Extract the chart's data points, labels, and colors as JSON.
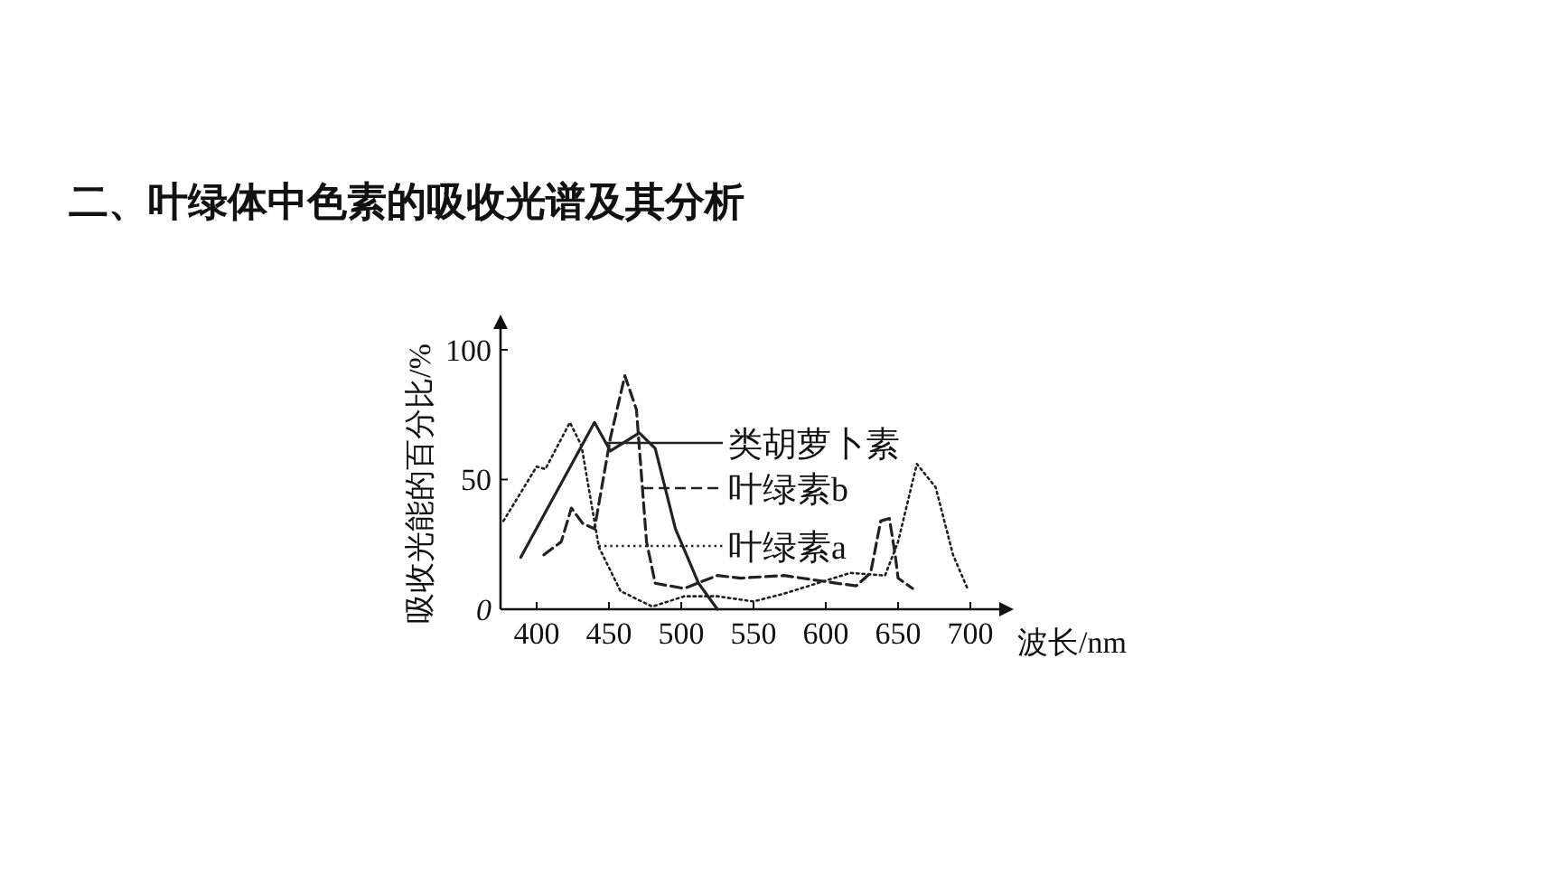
{
  "chart_data": {
    "type": "line",
    "title": "二、叶绿体中色素的吸收光谱及其分析",
    "xlabel": "波长/nm",
    "ylabel": "吸收光能的百分比/%",
    "xlim": [
      375,
      720
    ],
    "ylim": [
      0,
      108
    ],
    "xticks": [
      400,
      450,
      500,
      550,
      600,
      650,
      700
    ],
    "yticks": [
      0,
      50,
      100
    ],
    "grid": false,
    "legend": "right",
    "marker": "none",
    "series": [
      {
        "name": "类胡萝卜素",
        "color": "#222222",
        "line_style": "solid",
        "x": [
          389,
          440,
          451,
          471,
          482,
          496,
          512,
          525
        ],
        "values": [
          20,
          72,
          61,
          68,
          62,
          31,
          10,
          0
        ]
      },
      {
        "name": "叶绿素b",
        "color": "#222222",
        "line_style": "dashed",
        "x": [
          405,
          417,
          424,
          432,
          440,
          451,
          461,
          469,
          476,
          482,
          502,
          525,
          541,
          571,
          608,
          621,
          631,
          638,
          644,
          648,
          650,
          660
        ],
        "values": [
          21,
          26,
          39,
          33,
          31,
          66,
          90,
          77,
          26,
          10,
          8,
          13,
          12,
          13,
          10,
          9,
          14,
          34,
          35,
          21,
          12,
          8
        ]
      },
      {
        "name": "叶绿素a",
        "color": "#222222",
        "line_style": "dotted",
        "x": [
          377,
          400,
          406,
          423,
          431,
          443,
          458,
          480,
          502,
          525,
          550,
          571,
          617,
          641,
          650,
          663,
          676,
          688,
          698
        ],
        "values": [
          34,
          55,
          54,
          72,
          63,
          24,
          7,
          1,
          5,
          5,
          3,
          6,
          14,
          13,
          26,
          56,
          47,
          21,
          8
        ]
      }
    ]
  }
}
